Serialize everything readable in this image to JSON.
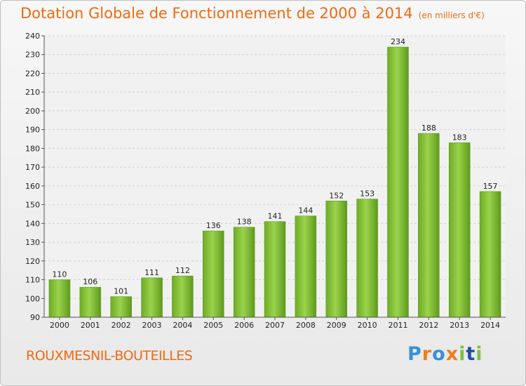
{
  "chart_data": {
    "type": "bar",
    "title": "Dotation Globale de Fonctionnement de 2000 à 2014",
    "subtitle": "(en milliers d'€)",
    "categories": [
      "2000",
      "2001",
      "2002",
      "2003",
      "2004",
      "2005",
      "2006",
      "2007",
      "2008",
      "2009",
      "2010",
      "2011",
      "2012",
      "2013",
      "2014"
    ],
    "values": [
      110,
      106,
      101,
      111,
      112,
      136,
      138,
      141,
      144,
      152,
      153,
      234,
      188,
      183,
      157
    ],
    "ylim": [
      90,
      240
    ],
    "yticks": [
      90,
      100,
      110,
      120,
      130,
      140,
      150,
      160,
      170,
      180,
      190,
      200,
      210,
      220,
      230,
      240
    ],
    "xlabel": "",
    "ylabel": "",
    "grid": true,
    "bar_color": "#7cba2e"
  },
  "footer": {
    "commune": "ROUXMESNIL-BOUTEILLES",
    "logo": "Proxiti"
  }
}
